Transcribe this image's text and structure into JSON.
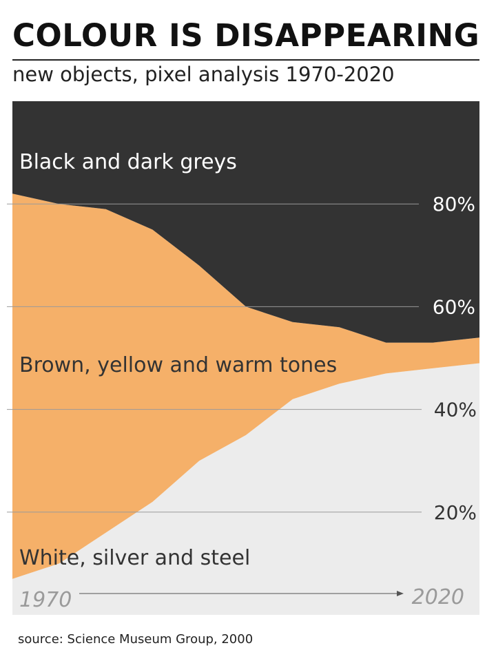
{
  "title": "COLOUR IS DISAPPEARING",
  "subtitle": "new objects, pixel analysis 1970-2020",
  "source": "source: Science Museum Group, 2000",
  "colors": {
    "dark": "#333333",
    "warm": "#f5b069",
    "light": "#ececec",
    "gridline": "#9a9a9a",
    "year_text": "#9a9a9a",
    "arrow": "#555555"
  },
  "chart_data": {
    "type": "area",
    "stacked": true,
    "x": [
      1970,
      1975,
      1980,
      1985,
      1990,
      1995,
      2000,
      2005,
      2010,
      2015,
      2020
    ],
    "ylim": [
      0,
      100
    ],
    "y_ticks": [
      {
        "value": 80,
        "label": "80%"
      },
      {
        "value": 60,
        "label": "60%"
      },
      {
        "value": 40,
        "label": "40%"
      },
      {
        "value": 20,
        "label": "20%"
      }
    ],
    "series": [
      {
        "name": "White, silver and steel",
        "color": "#ececec",
        "values": [
          7,
          10,
          16,
          22,
          30,
          35,
          42,
          45,
          47,
          48,
          49
        ]
      },
      {
        "name": "Brown, yellow and warm tones",
        "color": "#f5b069",
        "values": [
          75,
          70,
          63,
          53,
          38,
          25,
          15,
          11,
          6,
          5,
          5
        ]
      },
      {
        "name": "Black and dark greys",
        "color": "#333333",
        "values": [
          18,
          20,
          21,
          25,
          32,
          40,
          43,
          44,
          47,
          47,
          46
        ]
      }
    ],
    "x_axis_labels": {
      "start": "1970",
      "end": "2020"
    },
    "grid": true
  }
}
